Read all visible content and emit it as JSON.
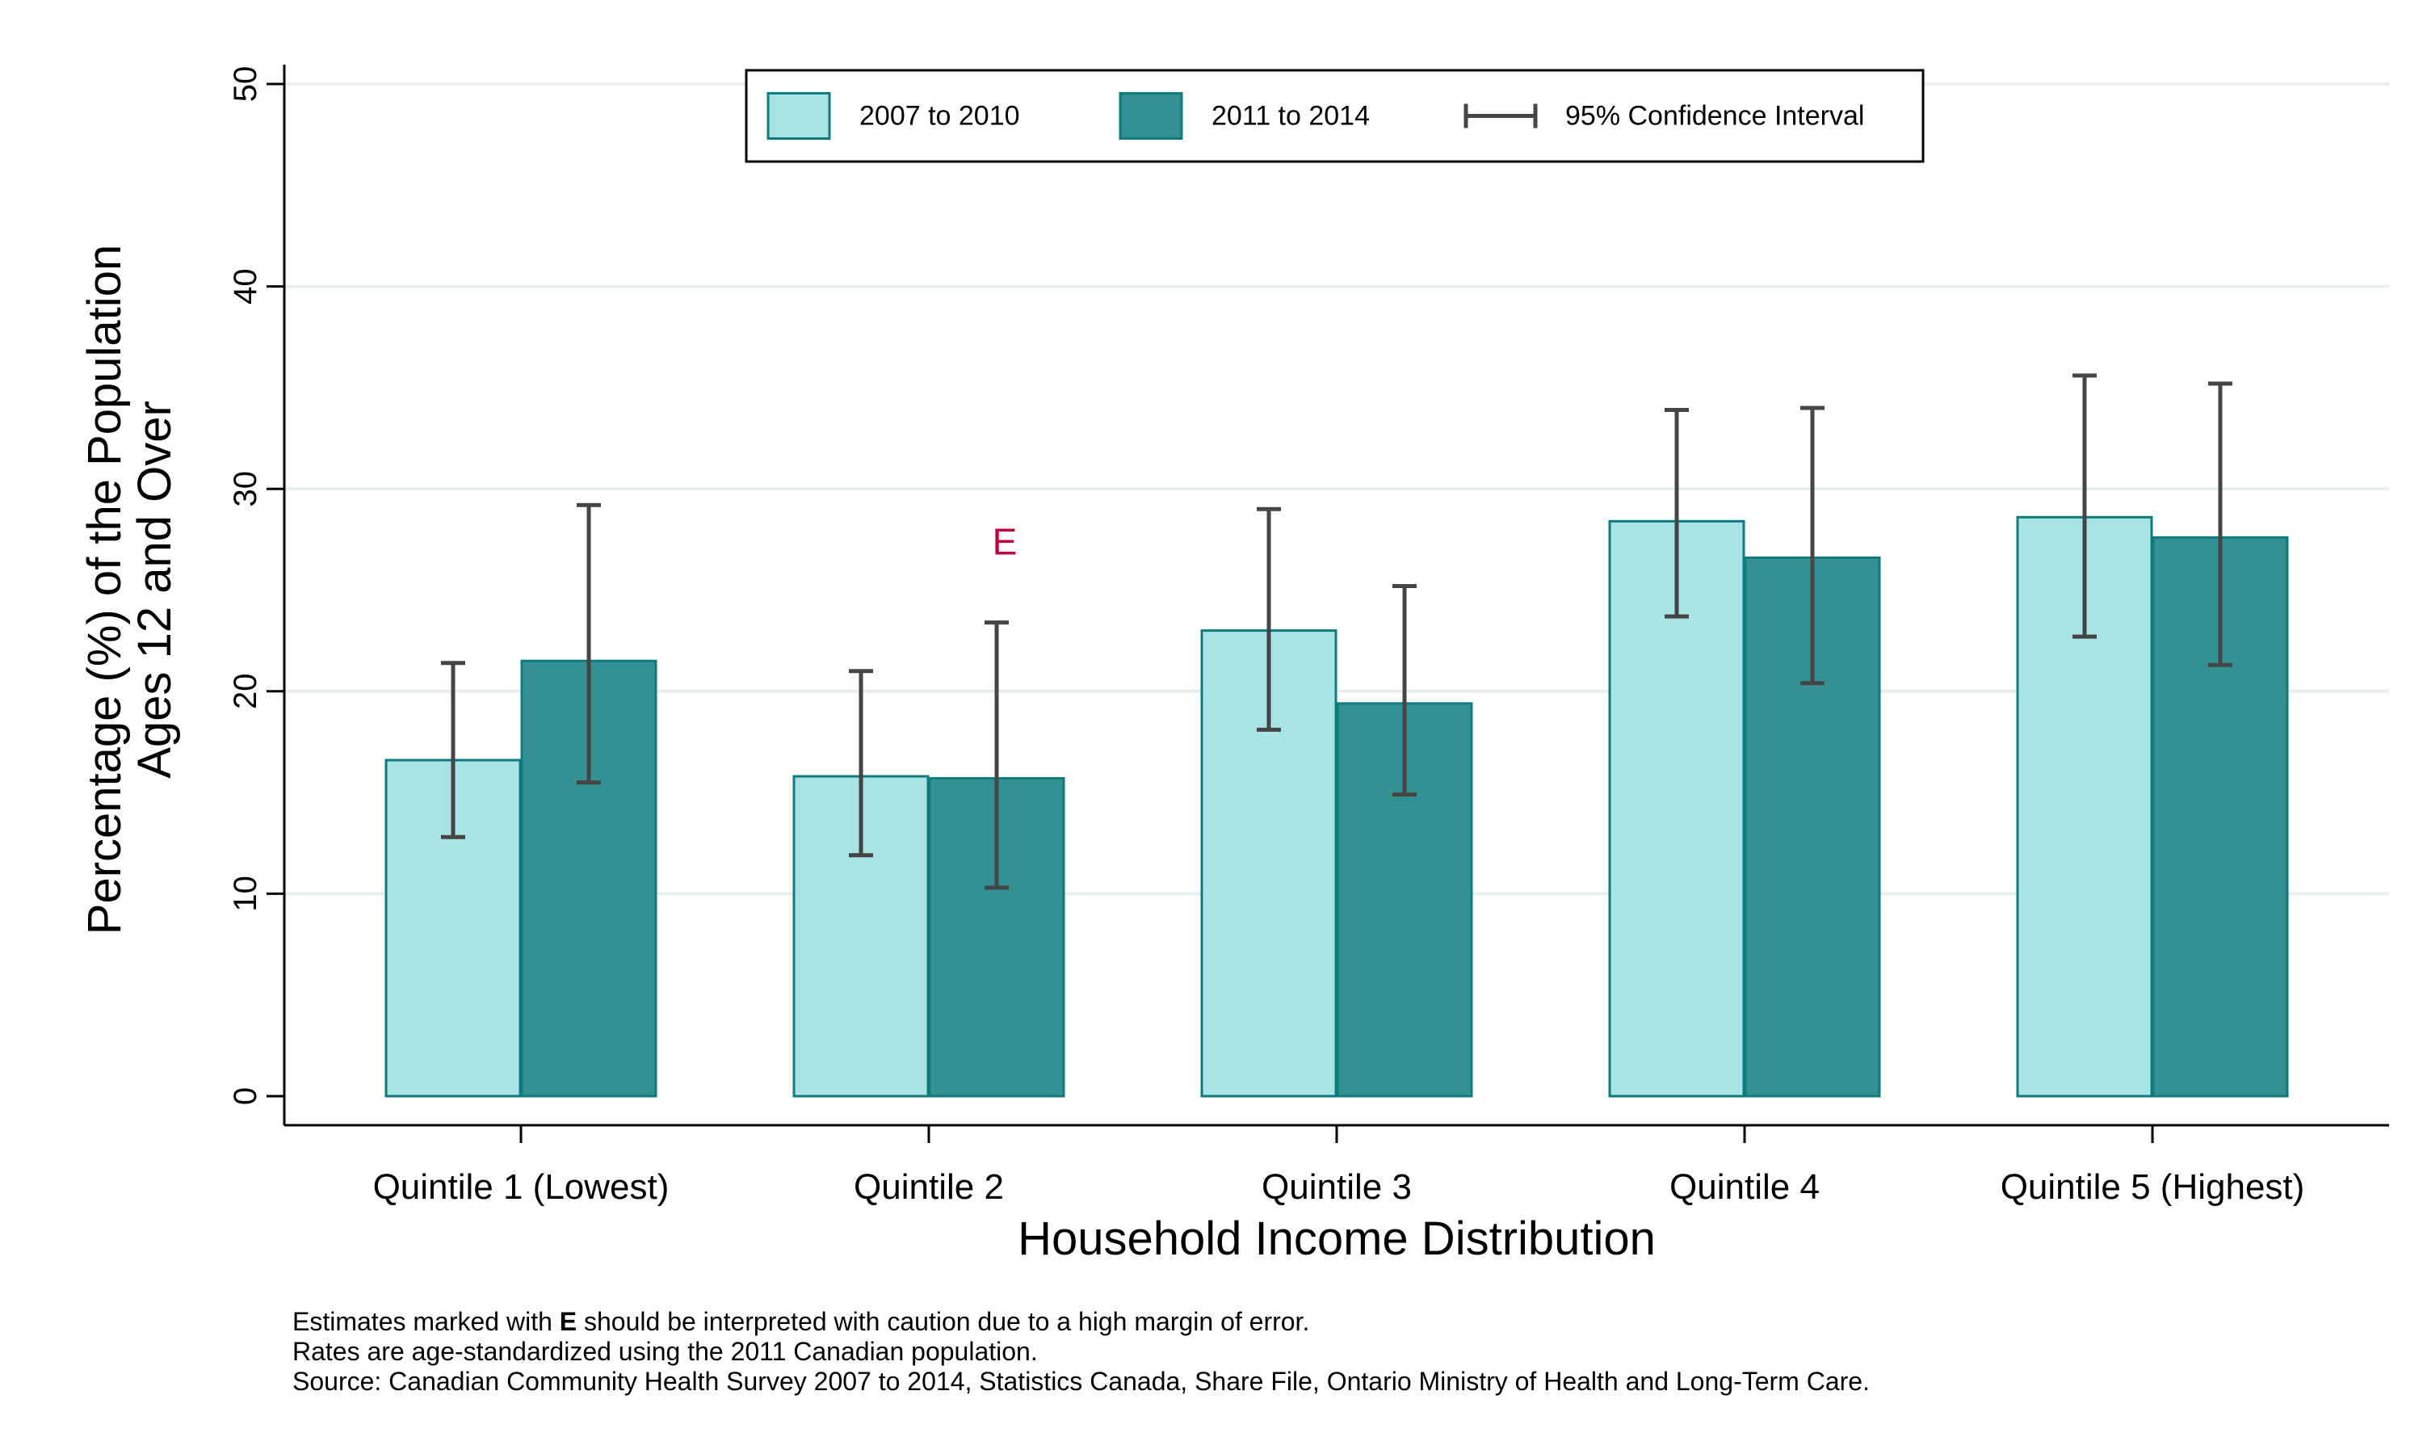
{
  "chart_data": {
    "type": "bar",
    "title": "",
    "xlabel": "Household Income Distribution",
    "ylabel_lines": [
      "Percentage (%) of the Population",
      "Ages 12 and Over"
    ],
    "ylim": [
      0,
      50
    ],
    "yticks": [
      "0",
      "10",
      "20",
      "30",
      "40",
      "50"
    ],
    "grid": true,
    "legend_position": "top-center",
    "categories": [
      "Quintile 1 (Lowest)",
      "Quintile 2",
      "Quintile 3",
      "Quintile 4",
      "Quintile 5 (Highest)"
    ],
    "series": [
      {
        "name": "2007 to 2010",
        "color": "#a8e4e6",
        "values": [
          16.6,
          15.8,
          23.0,
          28.4,
          28.6
        ],
        "ci_low": [
          12.8,
          11.9,
          18.1,
          23.7,
          22.7
        ],
        "ci_high": [
          21.4,
          21.0,
          29.0,
          33.9,
          35.6
        ],
        "flags": [
          "",
          "",
          "",
          "",
          ""
        ]
      },
      {
        "name": "2011 to 2014",
        "color": "#339193",
        "values": [
          21.5,
          15.7,
          19.4,
          26.6,
          27.6
        ],
        "ci_low": [
          15.5,
          10.3,
          14.9,
          20.4,
          21.3
        ],
        "ci_high": [
          29.2,
          23.4,
          25.2,
          34.0,
          35.2
        ],
        "flags": [
          "",
          "E",
          "",
          "",
          ""
        ]
      }
    ],
    "ci_legend_label": "95% Confidence Interval",
    "flag_color": "#c0003c",
    "edge_color": "#0f7b7d",
    "errorbar_color": "#454545",
    "grid_color": "#e6efee"
  },
  "footnotes": {
    "line1_pre": "Estimates marked with ",
    "line1_flag": "E",
    "line1_post": " should be interpreted with caution due to a high margin of error.",
    "line2": "Rates are age-standardized using the 2011 Canadian population.",
    "line3": "Source: Canadian Community Health Survey 2007 to 2014, Statistics Canada, Share File, Ontario Ministry of Health and Long-Term Care."
  }
}
